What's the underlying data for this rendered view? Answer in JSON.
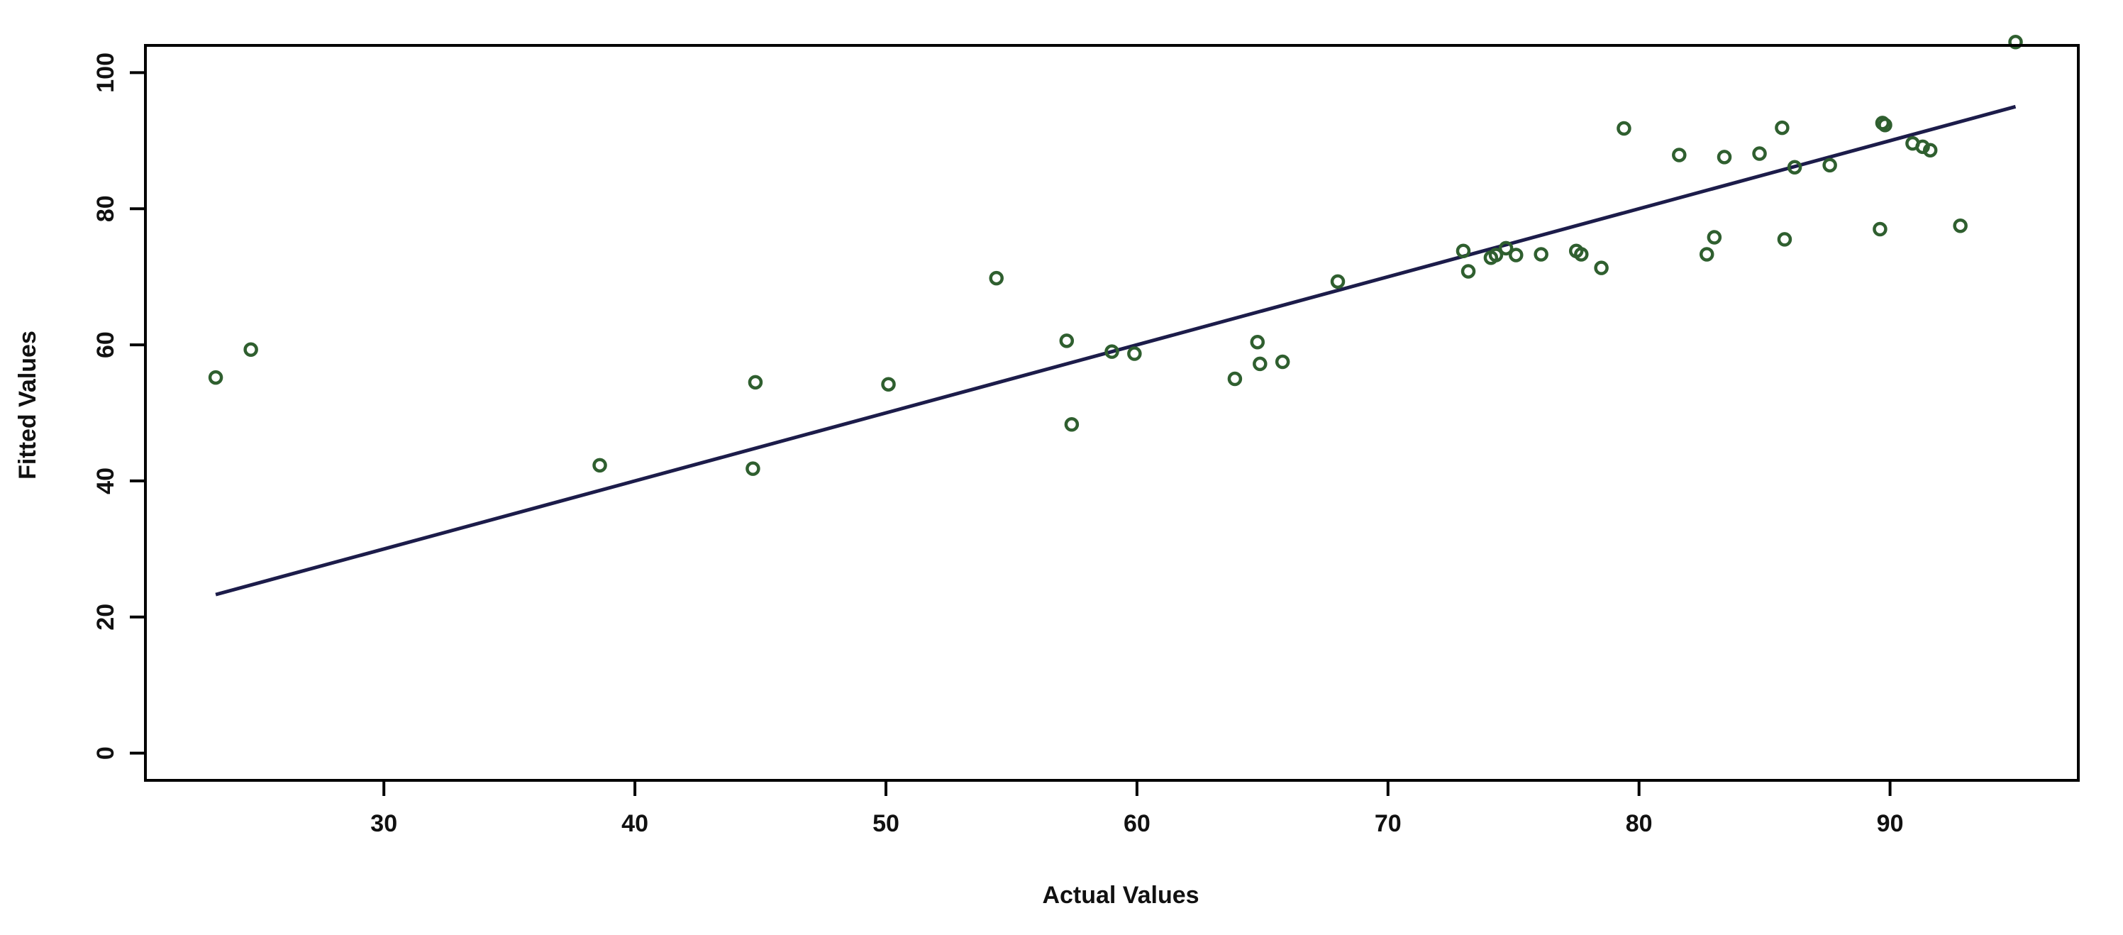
{
  "chart_data": {
    "type": "scatter",
    "title": "",
    "xlabel": "Actual Values",
    "ylabel": "Fitted Values",
    "xlim": [
      20.5,
      97.5
    ],
    "ylim": [
      -4,
      104
    ],
    "x_ticks": [
      30,
      40,
      50,
      60,
      70,
      80,
      90
    ],
    "y_ticks": [
      0,
      20,
      40,
      60,
      80,
      100
    ],
    "grid": false,
    "legend": "none",
    "colors": {
      "points": "#2f5f2f",
      "fit_line": "#1c1c4a",
      "axes": "#000000"
    },
    "fit_line": {
      "x": [
        23.3,
        95.0
      ],
      "y": [
        23.3,
        95.0
      ]
    },
    "points": [
      {
        "x": 23.3,
        "y": 55.2
      },
      {
        "x": 24.7,
        "y": 59.3
      },
      {
        "x": 38.6,
        "y": 42.3
      },
      {
        "x": 44.7,
        "y": 41.8
      },
      {
        "x": 44.8,
        "y": 54.5
      },
      {
        "x": 50.1,
        "y": 54.2
      },
      {
        "x": 54.4,
        "y": 69.8
      },
      {
        "x": 57.2,
        "y": 60.6
      },
      {
        "x": 57.4,
        "y": 48.3
      },
      {
        "x": 59.0,
        "y": 59.0
      },
      {
        "x": 59.9,
        "y": 58.7
      },
      {
        "x": 63.9,
        "y": 55.0
      },
      {
        "x": 64.8,
        "y": 60.4
      },
      {
        "x": 64.9,
        "y": 57.2
      },
      {
        "x": 65.8,
        "y": 57.5
      },
      {
        "x": 68.0,
        "y": 69.3
      },
      {
        "x": 73.0,
        "y": 73.8
      },
      {
        "x": 73.2,
        "y": 70.8
      },
      {
        "x": 74.1,
        "y": 72.8
      },
      {
        "x": 74.3,
        "y": 73.2
      },
      {
        "x": 74.7,
        "y": 74.2
      },
      {
        "x": 75.1,
        "y": 73.2
      },
      {
        "x": 76.1,
        "y": 73.3
      },
      {
        "x": 77.5,
        "y": 73.8
      },
      {
        "x": 77.7,
        "y": 73.3
      },
      {
        "x": 78.5,
        "y": 71.3
      },
      {
        "x": 79.4,
        "y": 91.8
      },
      {
        "x": 81.6,
        "y": 87.9
      },
      {
        "x": 82.7,
        "y": 73.3
      },
      {
        "x": 83.0,
        "y": 75.8
      },
      {
        "x": 83.4,
        "y": 87.6
      },
      {
        "x": 84.8,
        "y": 88.1
      },
      {
        "x": 85.7,
        "y": 91.9
      },
      {
        "x": 85.8,
        "y": 75.5
      },
      {
        "x": 86.2,
        "y": 86.1
      },
      {
        "x": 87.6,
        "y": 86.4
      },
      {
        "x": 89.6,
        "y": 77.0
      },
      {
        "x": 89.7,
        "y": 92.6
      },
      {
        "x": 89.8,
        "y": 92.3
      },
      {
        "x": 90.9,
        "y": 89.6
      },
      {
        "x": 91.3,
        "y": 89.1
      },
      {
        "x": 91.6,
        "y": 88.6
      },
      {
        "x": 92.8,
        "y": 77.5
      },
      {
        "x": 95.0,
        "y": 104.5
      }
    ]
  }
}
